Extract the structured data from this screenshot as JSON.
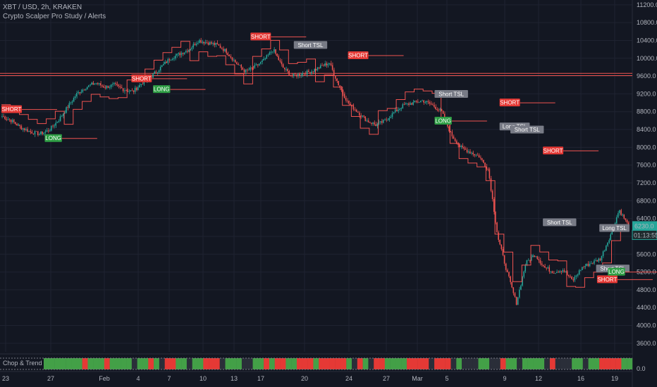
{
  "header": {
    "symbol_line": "XBT / USD, 2h, KRAKEN",
    "study_line": "Crypto Scalper Pro Study / Alerts"
  },
  "price_badges": {
    "last_price": "6230.0",
    "countdown": "01:13:55"
  },
  "lower_pane": {
    "label": "Chop & Trend",
    "axis_label": "0.0"
  },
  "colors": {
    "background": "#131722",
    "grid": "#1f2331",
    "bull": "#26a69a",
    "bear": "#ef5350",
    "signal_long": "#2e9e44",
    "signal_short": "#e53935",
    "tsl": "#787b86",
    "stop_line": "#ef5350",
    "price_badge": "#26a69a"
  },
  "chart_data": {
    "type": "candlestick",
    "ylim": [
      3400,
      11300
    ],
    "y_ticks": [
      "11200.0",
      "10800.0",
      "10400.0",
      "10000.0",
      "9600.0",
      "9200.0",
      "8800.0",
      "8400.0",
      "8000.0",
      "7600.0",
      "7200.0",
      "6800.0",
      "6400.0",
      "6000.0",
      "5600.0",
      "5200.0",
      "4800.0",
      "4400.0",
      "4000.0",
      "3600.0"
    ],
    "x_ticks": [
      "23",
      "27",
      "Feb",
      "4",
      "7",
      "10",
      "13",
      "17",
      "20",
      "24",
      "27",
      "Mar",
      "5",
      "9",
      "12",
      "16",
      "19"
    ],
    "price_path": [
      8700,
      8600,
      8450,
      8350,
      8300,
      8380,
      8600,
      8900,
      9200,
      9350,
      9450,
      9350,
      9400,
      9300,
      9250,
      9450,
      9600,
      9800,
      10000,
      10100,
      10200,
      10400,
      10350,
      10300,
      10150,
      9900,
      9700,
      9800,
      9950,
      10200,
      9800,
      9600,
      9650,
      9700,
      9800,
      9900,
      9400,
      9000,
      8800,
      8600,
      8500,
      8600,
      8800,
      8950,
      9000,
      9050,
      8950,
      8800,
      8300,
      8000,
      7900,
      7800,
      7500,
      6000,
      5200,
      4500,
      5400,
      5600,
      5300,
      5200,
      5250,
      5000,
      5300,
      5400,
      5500,
      6000,
      6600,
      6230
    ],
    "horizontal_levels": [
      9660,
      9610
    ],
    "signals": [
      {
        "label": "SHORT",
        "kind": "short",
        "time": "Jan 22",
        "price": 8850
      },
      {
        "label": "LONG",
        "kind": "long",
        "time": "Jan 26",
        "price": 8200
      },
      {
        "label": "SHORT",
        "kind": "short",
        "time": "Feb 3",
        "price": 9540
      },
      {
        "label": "LONG",
        "kind": "long",
        "time": "Feb 5",
        "price": 9300
      },
      {
        "label": "SHORT",
        "kind": "short",
        "time": "Feb 14",
        "price": 10480
      },
      {
        "label": "Short TSL",
        "kind": "tsl",
        "time": "Feb 18",
        "price": 10290
      },
      {
        "label": "SHORT",
        "kind": "short",
        "time": "Feb 23",
        "price": 10060
      },
      {
        "label": "Short TSL",
        "kind": "tsl",
        "time": "Mar 2",
        "price": 9190
      },
      {
        "label": "LONG",
        "kind": "long",
        "time": "Mar 2",
        "price": 8590
      },
      {
        "label": "SHORT",
        "kind": "short",
        "time": "Mar 8",
        "price": 9000
      },
      {
        "label": "Long TSL",
        "kind": "tsl",
        "time": "Mar 8",
        "price": 8460
      },
      {
        "label": "Short TSL",
        "kind": "tsl",
        "time": "Mar 9",
        "price": 8390
      },
      {
        "label": "SHORT",
        "kind": "short",
        "time": "Mar 12",
        "price": 7920
      },
      {
        "label": "Short TSL",
        "kind": "tsl",
        "time": "Mar 12",
        "price": 6310
      },
      {
        "label": "Short TSL",
        "kind": "tsl",
        "time": "Mar 17",
        "price": 5270
      },
      {
        "label": "SHORT",
        "kind": "short",
        "time": "Mar 17",
        "price": 5030
      },
      {
        "label": "LONG",
        "kind": "long",
        "time": "Mar 18",
        "price": 5200
      },
      {
        "label": "Long TSL",
        "kind": "tsl",
        "time": "Mar 19",
        "price": 6180
      }
    ],
    "chop_trend": [
      "g",
      "g",
      "g",
      "g",
      "g",
      "g",
      "g",
      "r",
      "g",
      "g",
      "g",
      "r",
      "g",
      "g",
      "g",
      "g",
      "n",
      "g",
      "g",
      "r",
      "g",
      "n",
      "r",
      "r",
      "g",
      "g",
      "n",
      "g",
      "g",
      "r",
      "r",
      "r",
      "n",
      "g",
      "g",
      "g",
      "n",
      "n",
      "g",
      "g",
      "r",
      "g",
      "r",
      "r",
      "g",
      "g",
      "r",
      "r",
      "r",
      "g",
      "r",
      "r",
      "r",
      "r",
      "r",
      "g",
      "n",
      "r",
      "g",
      "n",
      "r",
      "r",
      "g",
      "g",
      "g",
      "g",
      "r",
      "r",
      "r",
      "r",
      "n",
      "r",
      "r",
      "r",
      "n",
      "g",
      "n",
      "n",
      "n",
      "g",
      "g",
      "n",
      "n",
      "r",
      "g",
      "g",
      "n",
      "g",
      "g",
      "g",
      "g",
      "n",
      "r",
      "n",
      "n",
      "n",
      "g",
      "g",
      "n",
      "g",
      "g",
      "r",
      "r",
      "r",
      "r",
      "g",
      "g"
    ]
  }
}
